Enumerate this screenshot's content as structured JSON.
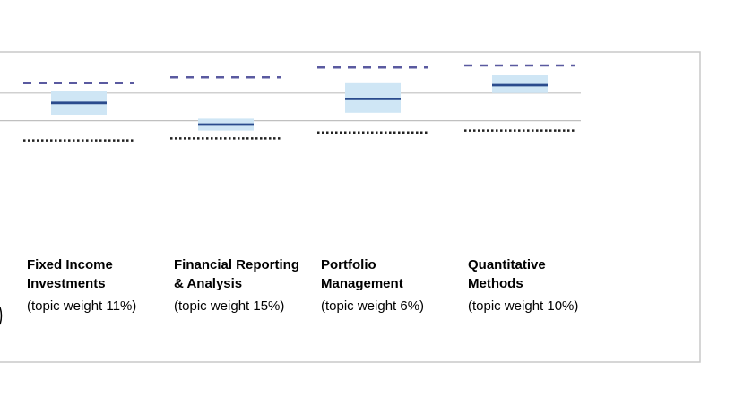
{
  "chart_data": {
    "type": "box",
    "grid": true,
    "legend": "none",
    "colors": {
      "box_fill": "#cfe6f5",
      "median_line": "#2a4b8d",
      "upper_dashed": "#5a5aa0",
      "lower_dotted": "#222222",
      "gridline": "#c0c0c0",
      "frame": "#c8c8c8"
    },
    "y_range": [
      0,
      100
    ],
    "gridlines": [
      71,
      57
    ],
    "categories": [
      {
        "title_lines": [
          "Fixed Income",
          "Investments"
        ],
        "weight": "(topic weight 11%)",
        "dashed": 76,
        "box_low": 60,
        "box_high": 72,
        "median": 66,
        "dotted": 47
      },
      {
        "title_lines": [
          "Financial Reporting",
          "& Analysis"
        ],
        "weight": "(topic weight 15%)",
        "dashed": 79,
        "box_low": 52,
        "box_high": 58,
        "median": 55,
        "dotted": 48
      },
      {
        "title_lines": [
          "Portfolio",
          "Management"
        ],
        "weight": "(topic weight 6%)",
        "dashed": 84,
        "box_low": 61,
        "box_high": 76,
        "median": 68,
        "dotted": 51
      },
      {
        "title_lines": [
          "Quantitative",
          "Methods"
        ],
        "weight": "(topic weight 10%)",
        "dashed": 85,
        "box_low": 71,
        "box_high": 80,
        "median": 75,
        "dotted": 52
      }
    ]
  }
}
